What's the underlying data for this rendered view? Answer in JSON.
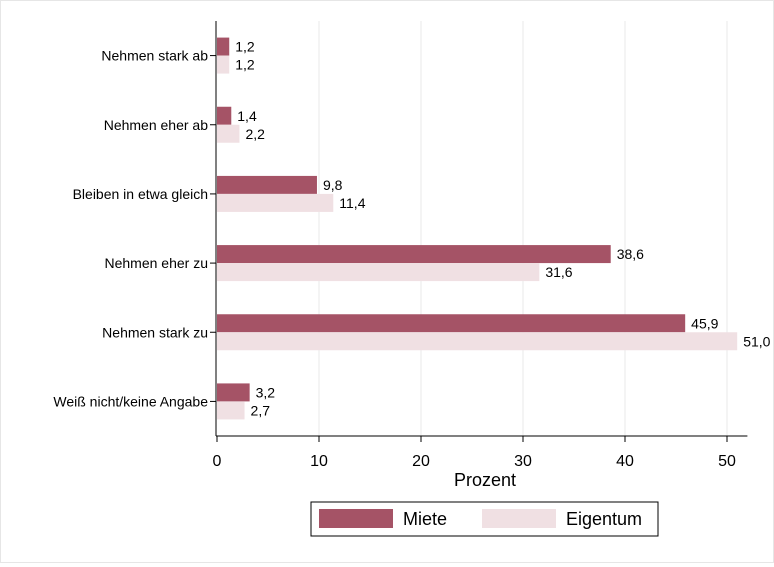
{
  "chart_data": {
    "type": "bar",
    "orientation": "horizontal",
    "categories": [
      "Nehmen stark ab",
      "Nehmen eher ab",
      "Bleiben in etwa gleich",
      "Nehmen eher zu",
      "Nehmen stark zu",
      "Weiß nicht/keine Angabe"
    ],
    "series": [
      {
        "name": "Miete",
        "color": "#a55366",
        "values": [
          1.2,
          1.4,
          9.8,
          38.6,
          45.9,
          3.2
        ],
        "labels": [
          "1,2",
          "1,4",
          "9,8",
          "38,6",
          "45,9",
          "3,2"
        ]
      },
      {
        "name": "Eigentum",
        "color": "#f0e0e3",
        "values": [
          1.2,
          2.2,
          11.4,
          31.6,
          51.0,
          2.7
        ],
        "labels": [
          "1,2",
          "2,2",
          "11,4",
          "31,6",
          "51,0",
          "2,7"
        ]
      }
    ],
    "xlabel": "Prozent",
    "ylabel": "",
    "title": "",
    "xlim": [
      0,
      52
    ],
    "xticks": [
      0,
      10,
      20,
      30,
      40,
      50
    ],
    "xtick_labels": [
      "0",
      "10",
      "20",
      "30",
      "40",
      "50"
    ],
    "grid": "vertical",
    "legend_position": "bottom"
  }
}
